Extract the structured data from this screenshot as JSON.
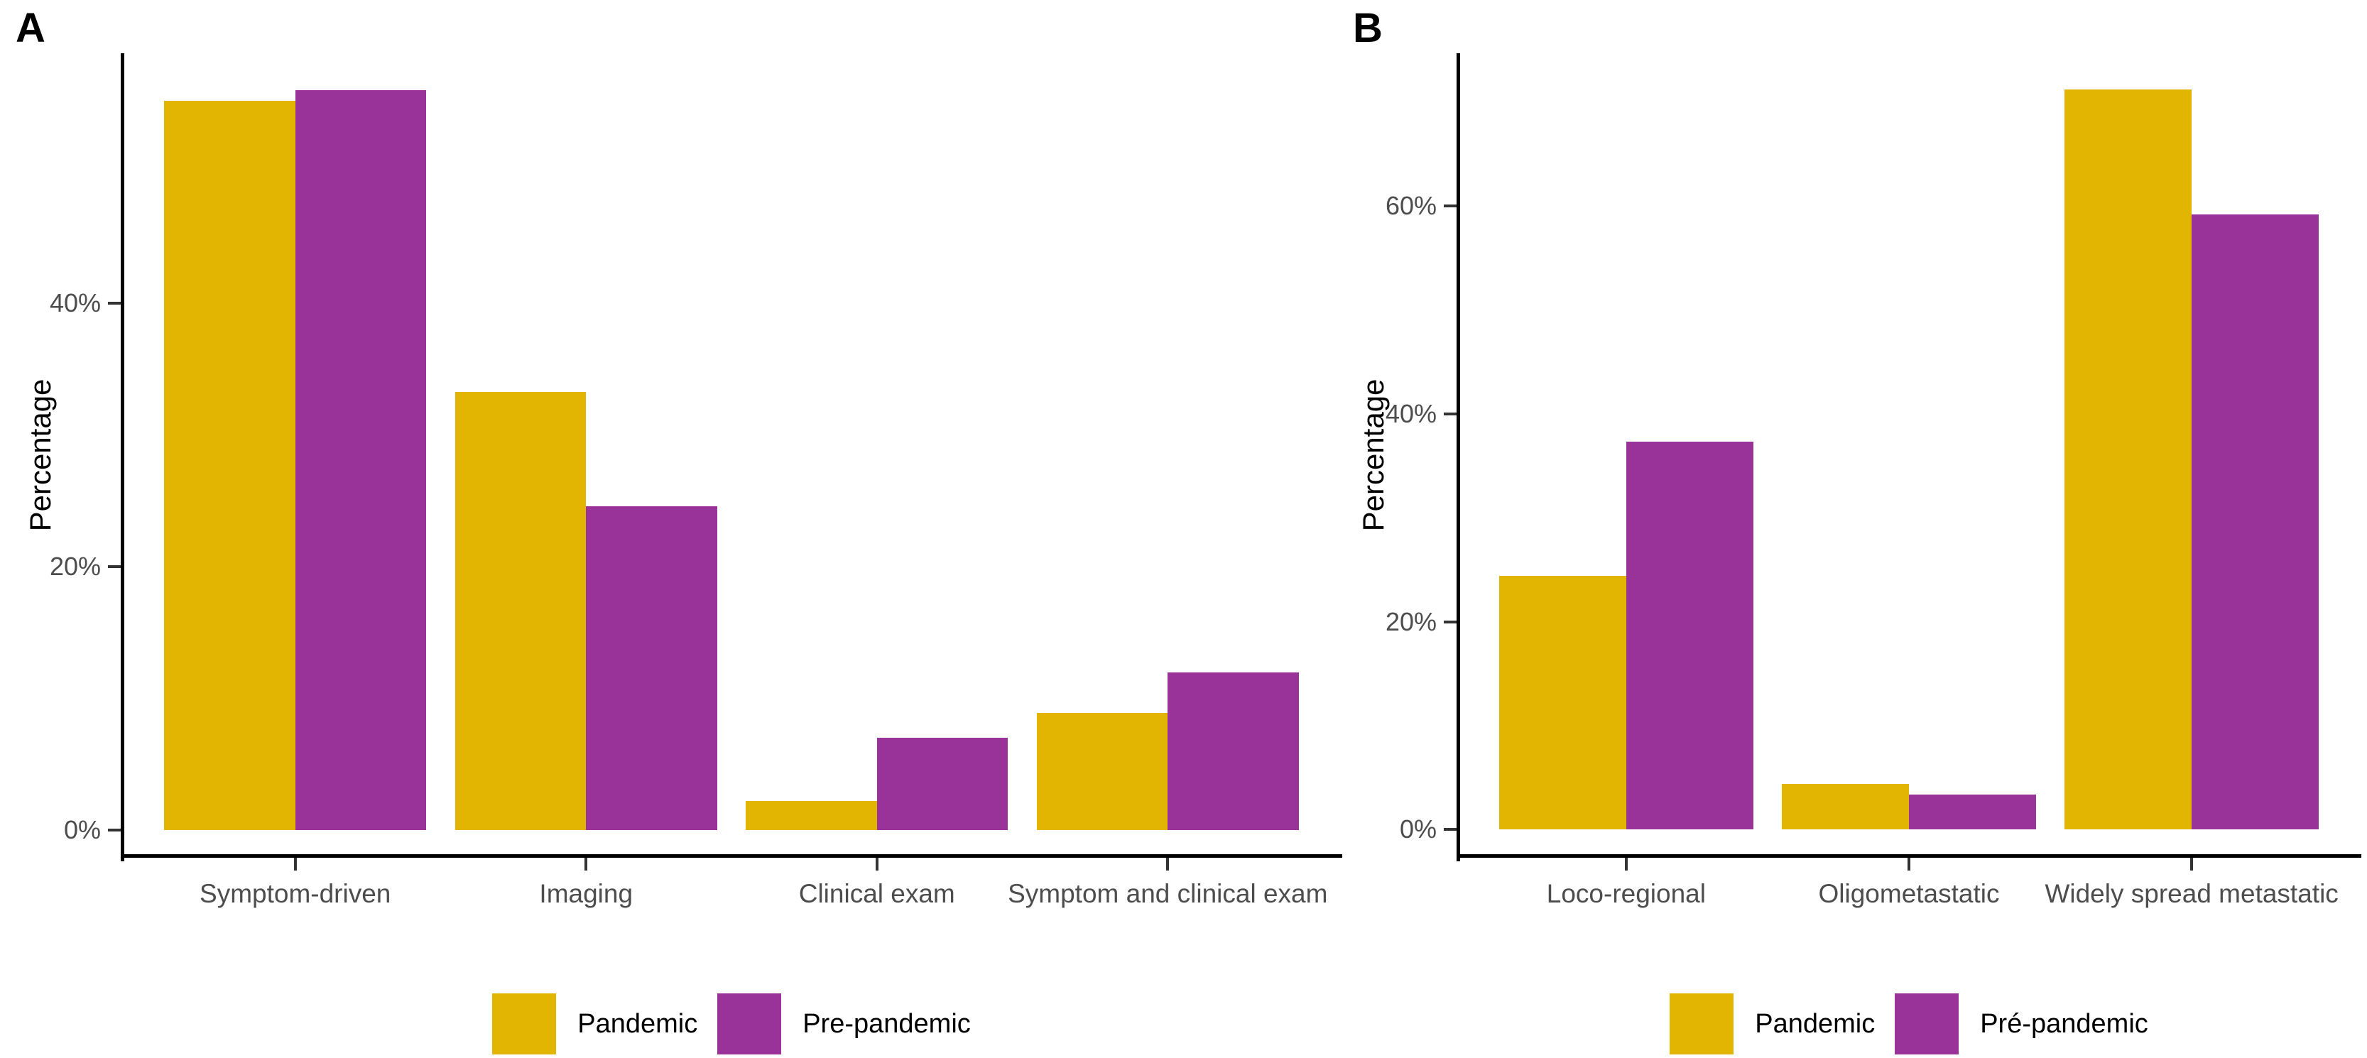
{
  "chart_data": [
    {
      "type": "bar",
      "panel_label": "A",
      "title": "",
      "xlabel": "",
      "ylabel": "Percentage",
      "categories": [
        "Symptom-driven",
        "Imaging",
        "Clinical exam",
        "Symptom and clinical exam"
      ],
      "series": [
        {
          "name": "Pandemic",
          "color": "#E2B503",
          "values": [
            55.4,
            33.3,
            2.2,
            8.9
          ]
        },
        {
          "name": "Pre-pandemic",
          "color": "#993399",
          "values": [
            56.2,
            24.6,
            7.0,
            12.0
          ]
        }
      ],
      "yticks": [
        {
          "value": 0,
          "label": "0%"
        },
        {
          "value": 20,
          "label": "20%"
        },
        {
          "value": 40,
          "label": "40%"
        }
      ],
      "ylim": [
        -2.1,
        59.0
      ],
      "grid": "off",
      "legend_position": "bottom"
    },
    {
      "type": "bar",
      "panel_label": "B",
      "title": "",
      "xlabel": "",
      "ylabel": "Percentage",
      "categories": [
        "Loco-regional",
        "Oligometastatic",
        "Widely spread metastatic"
      ],
      "series": [
        {
          "name": "Pandemic",
          "color": "#E2B503",
          "values": [
            24.4,
            4.4,
            71.2
          ]
        },
        {
          "name": "Pré-pandemic",
          "color": "#993399",
          "values": [
            37.3,
            3.4,
            59.2
          ]
        }
      ],
      "yticks": [
        {
          "value": 0,
          "label": "0%"
        },
        {
          "value": 20,
          "label": "20%"
        },
        {
          "value": 40,
          "label": "40%"
        },
        {
          "value": 60,
          "label": "60%"
        }
      ],
      "ylim": [
        -2.7,
        74.7
      ],
      "grid": "off",
      "legend_position": "bottom"
    }
  ]
}
